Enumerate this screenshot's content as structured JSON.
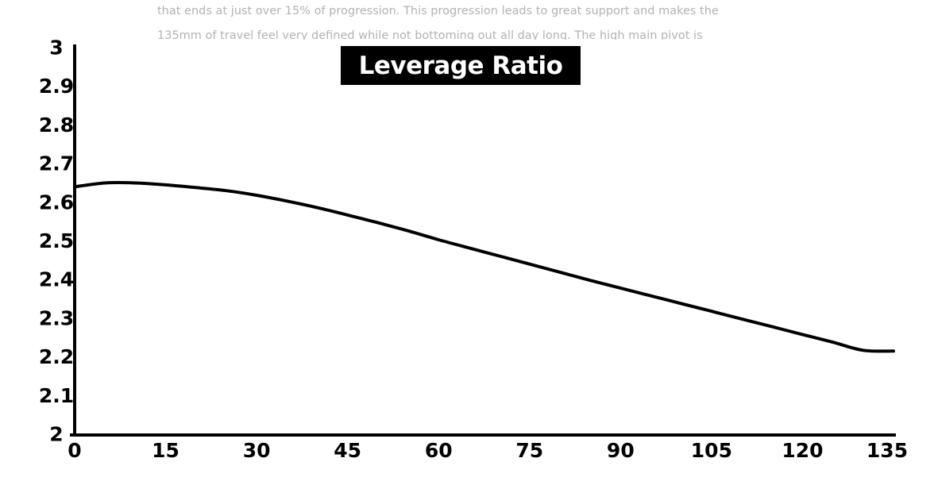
{
  "background_text": [
    "that ends at just over 15% of progression. This progression leads to great support and makes the",
    "135mm of travel feel very defined while not bottoming out all day long. The high main pivot is"
  ],
  "chart_data": {
    "type": "line",
    "title": "Leverage Ratio",
    "xlabel": "",
    "ylabel": "",
    "xlim": [
      0,
      135
    ],
    "ylim": [
      2,
      3
    ],
    "x_ticks": [
      "0",
      "15",
      "30",
      "45",
      "60",
      "75",
      "90",
      "105",
      "120",
      "135"
    ],
    "y_ticks": [
      "2",
      "2.1",
      "2.2",
      "2.3",
      "2.4",
      "2.5",
      "2.6",
      "2.7",
      "2.8",
      "2.9",
      "3"
    ],
    "grid": false,
    "series": [
      {
        "x": [
          0,
          5,
          10,
          15,
          20,
          25,
          30,
          35,
          40,
          45,
          50,
          55,
          60,
          65,
          70,
          75,
          80,
          85,
          90,
          95,
          100,
          105,
          110,
          115,
          120,
          125,
          130,
          135
        ],
        "y": [
          2.64,
          2.65,
          2.65,
          2.645,
          2.638,
          2.63,
          2.618,
          2.603,
          2.586,
          2.567,
          2.547,
          2.526,
          2.503,
          2.482,
          2.461,
          2.44,
          2.419,
          2.398,
          2.378,
          2.358,
          2.338,
          2.318,
          2.298,
          2.278,
          2.258,
          2.238,
          2.217,
          2.215
        ]
      }
    ],
    "colors": {
      "line": "#000000",
      "axis": "#000000",
      "title_bg": "#000000",
      "title_fg": "#ffffff"
    }
  }
}
